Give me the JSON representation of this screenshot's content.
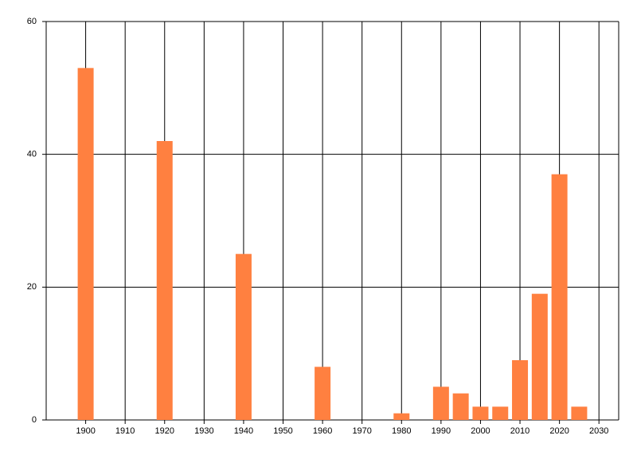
{
  "chart_data": {
    "type": "bar",
    "x": [
      1900,
      1920,
      1940,
      1960,
      1980,
      1990,
      1995,
      2000,
      2005,
      2010,
      2015,
      2020,
      2025
    ],
    "values": [
      53,
      42,
      25,
      8,
      1,
      5,
      4,
      2,
      2,
      9,
      19,
      37,
      2
    ],
    "color": "#ff8040",
    "xlim": [
      1890,
      2035
    ],
    "xticks": [
      1900,
      1910,
      1920,
      1930,
      1940,
      1950,
      1960,
      1970,
      1980,
      1990,
      2000,
      2010,
      2020,
      2030
    ],
    "ylim": [
      0,
      60
    ],
    "yticks": [
      0,
      20,
      40,
      60
    ],
    "grid": true
  }
}
